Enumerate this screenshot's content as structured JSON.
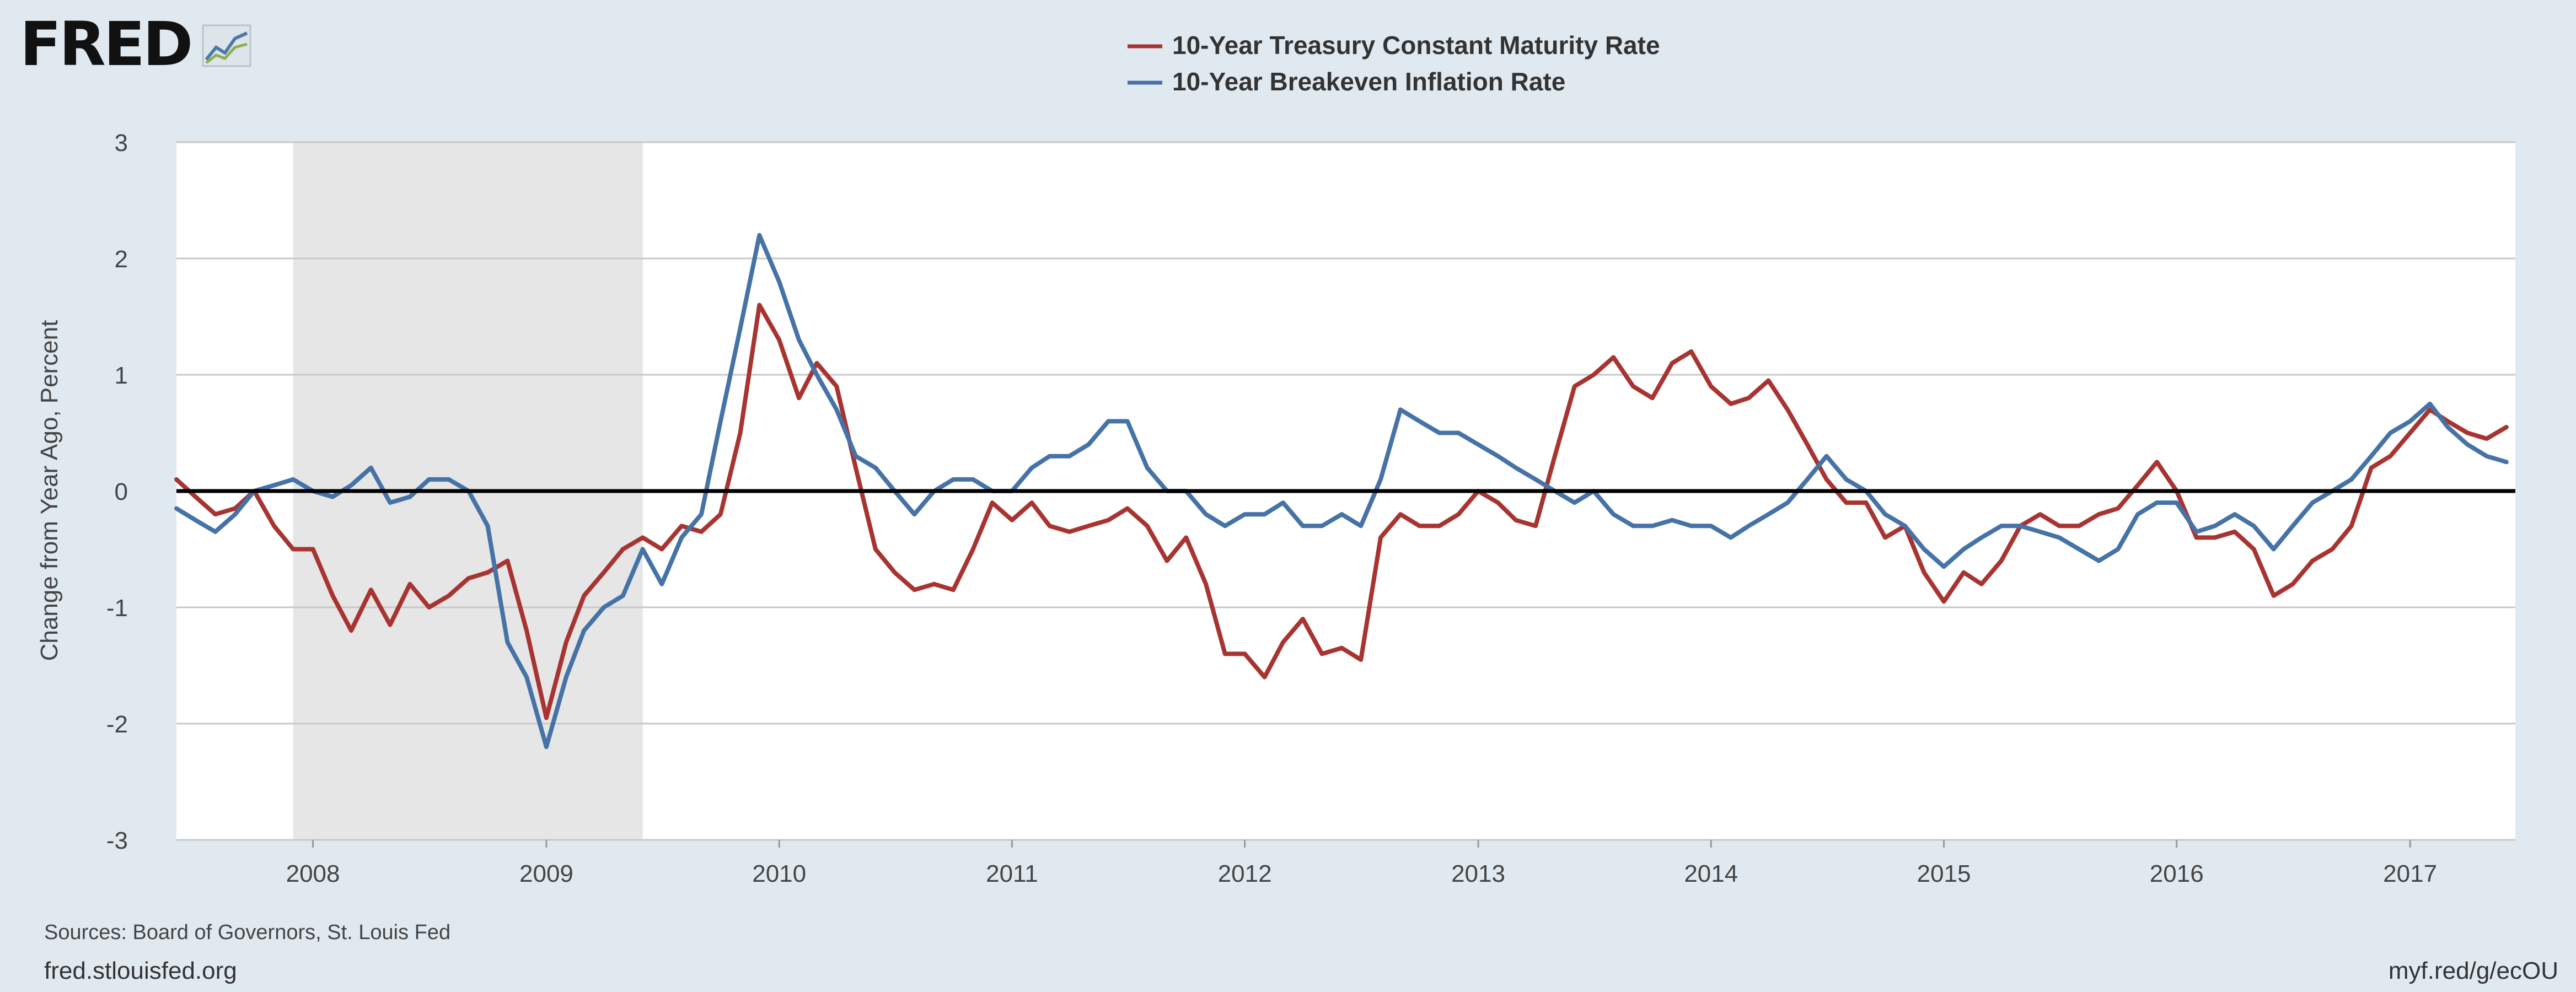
{
  "header": {
    "logo_text": "FRED",
    "logo_icon": "trend-chart-icon"
  },
  "legend": [
    {
      "label": "10-Year Treasury Constant Maturity Rate",
      "color": "#a83431"
    },
    {
      "label": "10-Year Breakeven Inflation Rate",
      "color": "#4572a7"
    }
  ],
  "footer": {
    "sources": "Sources: Board of Governors, St. Louis Fed",
    "site": "fred.stlouisfed.org",
    "short_url": "myf.red/g/ecOU"
  },
  "colors": {
    "background": "#e1e9f0",
    "plot_background": "#ffffff",
    "recession_shade": "#e6e6e6",
    "zero_line": "#000000",
    "gridline": "#c8c8c8"
  },
  "chart_data": {
    "type": "line",
    "ylabel": "Change from Year Ago, Percent",
    "ylim": [
      -3,
      3
    ],
    "yticks": [
      -3,
      -2,
      -1,
      0,
      1,
      2,
      3
    ],
    "xlim": [
      "2007-06-01",
      "2017-06-15"
    ],
    "xticks": [
      "2008",
      "2009",
      "2010",
      "2011",
      "2012",
      "2013",
      "2014",
      "2015",
      "2016",
      "2017"
    ],
    "grid": true,
    "legend_position": "top-center",
    "recession": {
      "start": "2007-12-01",
      "end": "2009-06-01"
    },
    "series": [
      {
        "name": "10-Year Treasury Constant Maturity Rate",
        "color": "#a83431",
        "points": [
          [
            "2007-06-01",
            0.1
          ],
          [
            "2007-07-01",
            -0.05
          ],
          [
            "2007-08-01",
            -0.2
          ],
          [
            "2007-09-01",
            -0.15
          ],
          [
            "2007-10-01",
            0.0
          ],
          [
            "2007-11-01",
            -0.3
          ],
          [
            "2007-12-01",
            -0.5
          ],
          [
            "2008-01-01",
            -0.5
          ],
          [
            "2008-02-01",
            -0.9
          ],
          [
            "2008-03-01",
            -1.2
          ],
          [
            "2008-04-01",
            -0.85
          ],
          [
            "2008-05-01",
            -1.15
          ],
          [
            "2008-06-01",
            -0.8
          ],
          [
            "2008-07-01",
            -1.0
          ],
          [
            "2008-08-01",
            -0.9
          ],
          [
            "2008-09-01",
            -0.75
          ],
          [
            "2008-10-01",
            -0.7
          ],
          [
            "2008-11-01",
            -0.6
          ],
          [
            "2008-12-01",
            -1.2
          ],
          [
            "2009-01-01",
            -1.95
          ],
          [
            "2009-02-01",
            -1.3
          ],
          [
            "2009-03-01",
            -0.9
          ],
          [
            "2009-04-01",
            -0.7
          ],
          [
            "2009-05-01",
            -0.5
          ],
          [
            "2009-06-01",
            -0.4
          ],
          [
            "2009-07-01",
            -0.5
          ],
          [
            "2009-08-01",
            -0.3
          ],
          [
            "2009-09-01",
            -0.35
          ],
          [
            "2009-10-01",
            -0.2
          ],
          [
            "2009-11-01",
            0.5
          ],
          [
            "2009-12-01",
            1.6
          ],
          [
            "2010-01-01",
            1.3
          ],
          [
            "2010-02-01",
            0.8
          ],
          [
            "2010-03-01",
            1.1
          ],
          [
            "2010-04-01",
            0.9
          ],
          [
            "2010-05-01",
            0.2
          ],
          [
            "2010-06-01",
            -0.5
          ],
          [
            "2010-07-01",
            -0.7
          ],
          [
            "2010-08-01",
            -0.85
          ],
          [
            "2010-09-01",
            -0.8
          ],
          [
            "2010-10-01",
            -0.85
          ],
          [
            "2010-11-01",
            -0.5
          ],
          [
            "2010-12-01",
            -0.1
          ],
          [
            "2011-01-01",
            -0.25
          ],
          [
            "2011-02-01",
            -0.1
          ],
          [
            "2011-03-01",
            -0.3
          ],
          [
            "2011-04-01",
            -0.35
          ],
          [
            "2011-05-01",
            -0.3
          ],
          [
            "2011-06-01",
            -0.25
          ],
          [
            "2011-07-01",
            -0.15
          ],
          [
            "2011-08-01",
            -0.3
          ],
          [
            "2011-09-01",
            -0.6
          ],
          [
            "2011-10-01",
            -0.4
          ],
          [
            "2011-11-01",
            -0.8
          ],
          [
            "2011-12-01",
            -1.4
          ],
          [
            "2012-01-01",
            -1.4
          ],
          [
            "2012-02-01",
            -1.6
          ],
          [
            "2012-03-01",
            -1.3
          ],
          [
            "2012-04-01",
            -1.1
          ],
          [
            "2012-05-01",
            -1.4
          ],
          [
            "2012-06-01",
            -1.35
          ],
          [
            "2012-07-01",
            -1.45
          ],
          [
            "2012-08-01",
            -0.4
          ],
          [
            "2012-09-01",
            -0.2
          ],
          [
            "2012-10-01",
            -0.3
          ],
          [
            "2012-11-01",
            -0.3
          ],
          [
            "2012-12-01",
            -0.2
          ],
          [
            "2013-01-01",
            0.0
          ],
          [
            "2013-02-01",
            -0.1
          ],
          [
            "2013-03-01",
            -0.25
          ],
          [
            "2013-04-01",
            -0.3
          ],
          [
            "2013-05-01",
            0.3
          ],
          [
            "2013-06-01",
            0.9
          ],
          [
            "2013-07-01",
            1.0
          ],
          [
            "2013-08-01",
            1.15
          ],
          [
            "2013-09-01",
            0.9
          ],
          [
            "2013-10-01",
            0.8
          ],
          [
            "2013-11-01",
            1.1
          ],
          [
            "2013-12-01",
            1.2
          ],
          [
            "2014-01-01",
            0.9
          ],
          [
            "2014-02-01",
            0.75
          ],
          [
            "2014-03-01",
            0.8
          ],
          [
            "2014-04-01",
            0.95
          ],
          [
            "2014-05-01",
            0.7
          ],
          [
            "2014-06-01",
            0.4
          ],
          [
            "2014-07-01",
            0.1
          ],
          [
            "2014-08-01",
            -0.1
          ],
          [
            "2014-09-01",
            -0.1
          ],
          [
            "2014-10-01",
            -0.4
          ],
          [
            "2014-11-01",
            -0.3
          ],
          [
            "2014-12-01",
            -0.7
          ],
          [
            "2015-01-01",
            -0.95
          ],
          [
            "2015-02-01",
            -0.7
          ],
          [
            "2015-03-01",
            -0.8
          ],
          [
            "2015-04-01",
            -0.6
          ],
          [
            "2015-05-01",
            -0.3
          ],
          [
            "2015-06-01",
            -0.2
          ],
          [
            "2015-07-01",
            -0.3
          ],
          [
            "2015-08-01",
            -0.3
          ],
          [
            "2015-09-01",
            -0.2
          ],
          [
            "2015-10-01",
            -0.15
          ],
          [
            "2015-11-01",
            0.05
          ],
          [
            "2015-12-01",
            0.25
          ],
          [
            "2016-01-01",
            0.0
          ],
          [
            "2016-02-01",
            -0.4
          ],
          [
            "2016-03-01",
            -0.4
          ],
          [
            "2016-04-01",
            -0.35
          ],
          [
            "2016-05-01",
            -0.5
          ],
          [
            "2016-06-01",
            -0.9
          ],
          [
            "2016-07-01",
            -0.8
          ],
          [
            "2016-08-01",
            -0.6
          ],
          [
            "2016-09-01",
            -0.5
          ],
          [
            "2016-10-01",
            -0.3
          ],
          [
            "2016-11-01",
            0.2
          ],
          [
            "2016-12-01",
            0.3
          ],
          [
            "2017-01-01",
            0.5
          ],
          [
            "2017-02-01",
            0.7
          ],
          [
            "2017-03-01",
            0.6
          ],
          [
            "2017-04-01",
            0.5
          ],
          [
            "2017-05-01",
            0.45
          ],
          [
            "2017-06-01",
            0.55
          ]
        ]
      },
      {
        "name": "10-Year Breakeven Inflation Rate",
        "color": "#4572a7",
        "points": [
          [
            "2007-06-01",
            -0.15
          ],
          [
            "2007-07-01",
            -0.25
          ],
          [
            "2007-08-01",
            -0.35
          ],
          [
            "2007-09-01",
            -0.2
          ],
          [
            "2007-10-01",
            0.0
          ],
          [
            "2007-11-01",
            0.05
          ],
          [
            "2007-12-01",
            0.1
          ],
          [
            "2008-01-01",
            0.0
          ],
          [
            "2008-02-01",
            -0.05
          ],
          [
            "2008-03-01",
            0.05
          ],
          [
            "2008-04-01",
            0.2
          ],
          [
            "2008-05-01",
            -0.1
          ],
          [
            "2008-06-01",
            -0.05
          ],
          [
            "2008-07-01",
            0.1
          ],
          [
            "2008-08-01",
            0.1
          ],
          [
            "2008-09-01",
            0.0
          ],
          [
            "2008-10-01",
            -0.3
          ],
          [
            "2008-11-01",
            -1.3
          ],
          [
            "2008-12-01",
            -1.6
          ],
          [
            "2009-01-01",
            -2.2
          ],
          [
            "2009-02-01",
            -1.6
          ],
          [
            "2009-03-01",
            -1.2
          ],
          [
            "2009-04-01",
            -1.0
          ],
          [
            "2009-05-01",
            -0.9
          ],
          [
            "2009-06-01",
            -0.5
          ],
          [
            "2009-07-01",
            -0.8
          ],
          [
            "2009-08-01",
            -0.4
          ],
          [
            "2009-09-01",
            -0.2
          ],
          [
            "2009-10-01",
            0.6
          ],
          [
            "2009-11-01",
            1.4
          ],
          [
            "2009-12-01",
            2.2
          ],
          [
            "2010-01-01",
            1.8
          ],
          [
            "2010-02-01",
            1.3
          ],
          [
            "2010-03-01",
            1.0
          ],
          [
            "2010-04-01",
            0.7
          ],
          [
            "2010-05-01",
            0.3
          ],
          [
            "2010-06-01",
            0.2
          ],
          [
            "2010-07-01",
            0.0
          ],
          [
            "2010-08-01",
            -0.2
          ],
          [
            "2010-09-01",
            0.0
          ],
          [
            "2010-10-01",
            0.1
          ],
          [
            "2010-11-01",
            0.1
          ],
          [
            "2010-12-01",
            0.0
          ],
          [
            "2011-01-01",
            0.0
          ],
          [
            "2011-02-01",
            0.2
          ],
          [
            "2011-03-01",
            0.3
          ],
          [
            "2011-04-01",
            0.3
          ],
          [
            "2011-05-01",
            0.4
          ],
          [
            "2011-06-01",
            0.6
          ],
          [
            "2011-07-01",
            0.6
          ],
          [
            "2011-08-01",
            0.2
          ],
          [
            "2011-09-01",
            0.0
          ],
          [
            "2011-10-01",
            0.0
          ],
          [
            "2011-11-01",
            -0.2
          ],
          [
            "2011-12-01",
            -0.3
          ],
          [
            "2012-01-01",
            -0.2
          ],
          [
            "2012-02-01",
            -0.2
          ],
          [
            "2012-03-01",
            -0.1
          ],
          [
            "2012-04-01",
            -0.3
          ],
          [
            "2012-05-01",
            -0.3
          ],
          [
            "2012-06-01",
            -0.2
          ],
          [
            "2012-07-01",
            -0.3
          ],
          [
            "2012-08-01",
            0.1
          ],
          [
            "2012-09-01",
            0.7
          ],
          [
            "2012-10-01",
            0.6
          ],
          [
            "2012-11-01",
            0.5
          ],
          [
            "2012-12-01",
            0.5
          ],
          [
            "2013-01-01",
            0.4
          ],
          [
            "2013-02-01",
            0.3
          ],
          [
            "2013-03-01",
            0.2
          ],
          [
            "2013-04-01",
            0.1
          ],
          [
            "2013-05-01",
            0.0
          ],
          [
            "2013-06-01",
            -0.1
          ],
          [
            "2013-07-01",
            0.0
          ],
          [
            "2013-08-01",
            -0.2
          ],
          [
            "2013-09-01",
            -0.3
          ],
          [
            "2013-10-01",
            -0.3
          ],
          [
            "2013-11-01",
            -0.25
          ],
          [
            "2013-12-01",
            -0.3
          ],
          [
            "2014-01-01",
            -0.3
          ],
          [
            "2014-02-01",
            -0.4
          ],
          [
            "2014-03-01",
            -0.3
          ],
          [
            "2014-04-01",
            -0.2
          ],
          [
            "2014-05-01",
            -0.1
          ],
          [
            "2014-06-01",
            0.1
          ],
          [
            "2014-07-01",
            0.3
          ],
          [
            "2014-08-01",
            0.1
          ],
          [
            "2014-09-01",
            0.0
          ],
          [
            "2014-10-01",
            -0.2
          ],
          [
            "2014-11-01",
            -0.3
          ],
          [
            "2014-12-01",
            -0.5
          ],
          [
            "2015-01-01",
            -0.65
          ],
          [
            "2015-02-01",
            -0.5
          ],
          [
            "2015-03-01",
            -0.4
          ],
          [
            "2015-04-01",
            -0.3
          ],
          [
            "2015-05-01",
            -0.3
          ],
          [
            "2015-06-01",
            -0.35
          ],
          [
            "2015-07-01",
            -0.4
          ],
          [
            "2015-08-01",
            -0.5
          ],
          [
            "2015-09-01",
            -0.6
          ],
          [
            "2015-10-01",
            -0.5
          ],
          [
            "2015-11-01",
            -0.2
          ],
          [
            "2015-12-01",
            -0.1
          ],
          [
            "2016-01-01",
            -0.1
          ],
          [
            "2016-02-01",
            -0.35
          ],
          [
            "2016-03-01",
            -0.3
          ],
          [
            "2016-04-01",
            -0.2
          ],
          [
            "2016-05-01",
            -0.3
          ],
          [
            "2016-06-01",
            -0.5
          ],
          [
            "2016-07-01",
            -0.3
          ],
          [
            "2016-08-01",
            -0.1
          ],
          [
            "2016-09-01",
            0.0
          ],
          [
            "2016-10-01",
            0.1
          ],
          [
            "2016-11-01",
            0.3
          ],
          [
            "2016-12-01",
            0.5
          ],
          [
            "2017-01-01",
            0.6
          ],
          [
            "2017-02-01",
            0.75
          ],
          [
            "2017-03-01",
            0.55
          ],
          [
            "2017-04-01",
            0.4
          ],
          [
            "2017-05-01",
            0.3
          ],
          [
            "2017-06-01",
            0.25
          ]
        ]
      }
    ]
  }
}
